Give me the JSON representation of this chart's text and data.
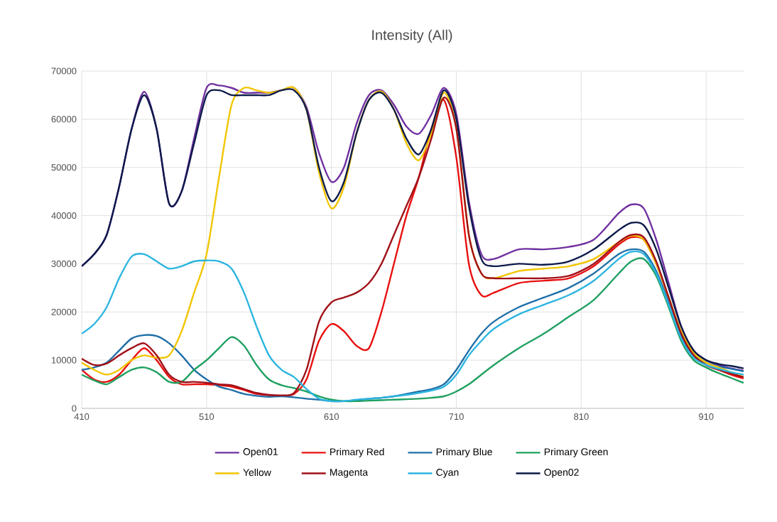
{
  "chart_data": {
    "type": "line",
    "title": "Intensity (All)",
    "x": [
      410,
      420,
      430,
      440,
      450,
      460,
      470,
      480,
      490,
      500,
      510,
      520,
      530,
      540,
      550,
      560,
      570,
      580,
      590,
      600,
      610,
      620,
      630,
      640,
      650,
      660,
      670,
      680,
      690,
      700,
      710,
      720,
      730,
      740,
      760,
      780,
      800,
      820,
      840,
      850,
      860,
      870,
      880,
      890,
      900,
      910,
      920,
      930,
      940
    ],
    "series": [
      {
        "name": "Open01",
        "color": "#7030a0",
        "values": [
          29500,
          32000,
          36000,
          46000,
          58000,
          65700,
          58000,
          42500,
          45000,
          56000,
          66500,
          67000,
          66500,
          65500,
          65500,
          65500,
          66000,
          66500,
          62500,
          53000,
          47000,
          50000,
          59000,
          65000,
          66000,
          63000,
          58500,
          57000,
          61000,
          66500,
          61000,
          43000,
          32000,
          31000,
          33000,
          33000,
          33500,
          35000,
          40500,
          42300,
          41500,
          35000,
          26000,
          17000,
          12000,
          10000,
          9000,
          8300,
          7800
        ]
      },
      {
        "name": "Primary Red",
        "color": "#e81010",
        "values": [
          8000,
          6000,
          5500,
          7000,
          10000,
          12500,
          10000,
          6500,
          5000,
          5000,
          5000,
          4800,
          4500,
          3800,
          3000,
          2700,
          2600,
          3000,
          6000,
          14000,
          17500,
          16000,
          13000,
          12500,
          20000,
          30000,
          40000,
          48000,
          58000,
          64000,
          52000,
          30000,
          23500,
          24000,
          26000,
          26500,
          27000,
          29500,
          34000,
          35500,
          35000,
          30000,
          23000,
          15500,
          11000,
          9000,
          8000,
          7000,
          6200
        ]
      },
      {
        "name": "Primary Blue",
        "color": "#1f6fa8",
        "values": [
          8000,
          8500,
          9500,
          12000,
          14500,
          15200,
          15000,
          13500,
          11000,
          8000,
          6000,
          4500,
          3800,
          3000,
          2600,
          2400,
          2500,
          2300,
          2000,
          1800,
          1500,
          1500,
          1700,
          2000,
          2200,
          2500,
          3000,
          3500,
          4000,
          5000,
          8000,
          12000,
          15500,
          18000,
          21000,
          23000,
          25000,
          28000,
          32000,
          33000,
          32500,
          28500,
          22000,
          15000,
          11000,
          9500,
          8700,
          8200,
          7700
        ]
      },
      {
        "name": "Primary Green",
        "color": "#20a060",
        "values": [
          7000,
          5800,
          5000,
          6500,
          8000,
          8500,
          7500,
          5500,
          5500,
          8000,
          10000,
          12500,
          14800,
          13000,
          9000,
          6000,
          4800,
          4200,
          3500,
          2500,
          1800,
          1500,
          1500,
          1600,
          1700,
          1800,
          1900,
          2000,
          2200,
          2500,
          3500,
          5000,
          7000,
          9000,
          12500,
          15500,
          19000,
          22500,
          28000,
          30500,
          31000,
          27500,
          21000,
          14000,
          10000,
          8500,
          7300,
          6300,
          5300
        ]
      },
      {
        "name": "Yellow",
        "color": "#f2c500",
        "values": [
          9500,
          8000,
          7000,
          8000,
          10000,
          11000,
          10500,
          11000,
          16000,
          24000,
          32000,
          48000,
          63000,
          66500,
          66000,
          65500,
          66000,
          66500,
          62000,
          49000,
          41500,
          46000,
          57000,
          64000,
          65800,
          62000,
          55000,
          51500,
          57000,
          65500,
          58000,
          36000,
          28000,
          27000,
          28500,
          29000,
          29500,
          31000,
          34500,
          35800,
          35000,
          30000,
          23000,
          16000,
          11500,
          9500,
          8500,
          7500,
          6500
        ]
      },
      {
        "name": "Magenta",
        "color": "#a01018",
        "values": [
          10300,
          9000,
          9300,
          11000,
          12500,
          13500,
          11000,
          7000,
          5500,
          5500,
          5300,
          5000,
          4800,
          4000,
          3200,
          2800,
          2700,
          3200,
          8000,
          18000,
          22000,
          23000,
          24000,
          26000,
          30000,
          36000,
          42000,
          48000,
          56000,
          64500,
          58000,
          36000,
          28000,
          27000,
          27000,
          27000,
          27500,
          30000,
          34500,
          36000,
          35500,
          30500,
          23000,
          15500,
          11000,
          9000,
          8000,
          7200,
          6500
        ]
      },
      {
        "name": "Cyan",
        "color": "#2cb5e0",
        "values": [
          15500,
          17500,
          21000,
          27000,
          31500,
          32000,
          30500,
          29000,
          29500,
          30500,
          30700,
          30500,
          29000,
          24000,
          17000,
          11000,
          8000,
          6500,
          4000,
          2000,
          1500,
          1500,
          1800,
          2000,
          2200,
          2500,
          2800,
          3200,
          3700,
          4500,
          7000,
          11000,
          14000,
          16500,
          19500,
          21500,
          23500,
          26500,
          31000,
          32500,
          32000,
          28000,
          21500,
          14500,
          10500,
          9000,
          8200,
          7500,
          7000
        ]
      },
      {
        "name": "Open02",
        "color": "#0d1a4a",
        "values": [
          29500,
          32000,
          36000,
          46000,
          58000,
          65000,
          58000,
          42500,
          45000,
          55000,
          65000,
          66000,
          65000,
          65000,
          65000,
          65000,
          66000,
          66000,
          62000,
          50000,
          43000,
          47000,
          57000,
          64000,
          65500,
          62000,
          56000,
          52700,
          58000,
          66000,
          60000,
          42000,
          31000,
          29500,
          30000,
          29800,
          30500,
          33000,
          37000,
          38500,
          38000,
          33000,
          25000,
          17000,
          12000,
          10000,
          9200,
          8800,
          8300
        ]
      }
    ],
    "xlim": [
      410,
      940
    ],
    "ylim": [
      0,
      70000
    ],
    "xticks": [
      410,
      510,
      610,
      710,
      810,
      910
    ],
    "yticks": [
      0,
      10000,
      20000,
      30000,
      40000,
      50000,
      60000,
      70000
    ],
    "grid": true,
    "legend": "bottom",
    "marker": "none",
    "line_style": "solid"
  }
}
